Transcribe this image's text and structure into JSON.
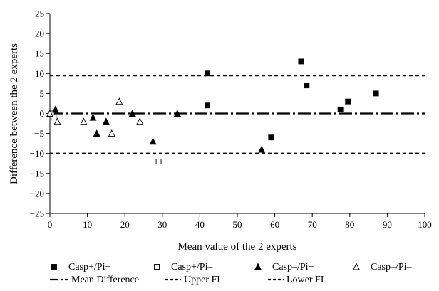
{
  "chart_data": {
    "type": "scatter",
    "title": "",
    "xlabel": "Mean value of the 2 experts",
    "ylabel": "Difference between the 2 experts",
    "xlim": [
      0,
      100
    ],
    "ylim": [
      -25,
      25
    ],
    "x_ticks": [
      0,
      10,
      20,
      30,
      40,
      50,
      60,
      70,
      80,
      90,
      100
    ],
    "y_ticks": [
      25,
      20,
      15,
      10,
      5,
      0,
      -5,
      -10,
      -15,
      -20,
      -25
    ],
    "y_tick_labels": [
      "25",
      "20",
      "15",
      "10",
      "5",
      "0",
      "−5",
      "−10",
      "−15",
      "−20",
      "−25"
    ],
    "grid": false,
    "legend_position": "bottom",
    "series": [
      {
        "name": "Casp+/Pi+",
        "marker": "filled-square",
        "color": "#000000",
        "points": [
          [
            42,
            10
          ],
          [
            42,
            2
          ],
          [
            59,
            -6
          ],
          [
            67,
            13
          ],
          [
            68.5,
            7
          ],
          [
            77.5,
            1
          ],
          [
            79.5,
            3
          ],
          [
            87,
            5
          ]
        ]
      },
      {
        "name": "Casp+/Pi–",
        "marker": "open-square",
        "color": "#000000",
        "points": [
          [
            0.5,
            0
          ],
          [
            1,
            -1
          ],
          [
            29,
            -12
          ]
        ]
      },
      {
        "name": "Casp–/Pi+",
        "marker": "filled-triangle",
        "color": "#000000",
        "points": [
          [
            1.5,
            1
          ],
          [
            11.5,
            -1
          ],
          [
            12.5,
            -5
          ],
          [
            15,
            -2
          ],
          [
            22,
            0
          ],
          [
            27.5,
            -7
          ],
          [
            34,
            0
          ],
          [
            56.5,
            -9
          ]
        ]
      },
      {
        "name": "Casp–/Pi–",
        "marker": "open-triangle",
        "color": "#000000",
        "points": [
          [
            0,
            0
          ],
          [
            2,
            -2
          ],
          [
            9,
            -2
          ],
          [
            16.5,
            -5
          ],
          [
            18.5,
            3
          ],
          [
            24,
            -2
          ]
        ]
      }
    ],
    "reference_lines": [
      {
        "name": "Mean Difference",
        "y": 0,
        "style": "dash-dot"
      },
      {
        "name": "Upper FL",
        "y": 9.5,
        "style": "dotted"
      },
      {
        "name": "Lower FL",
        "y": -10,
        "style": "dotted"
      }
    ]
  }
}
